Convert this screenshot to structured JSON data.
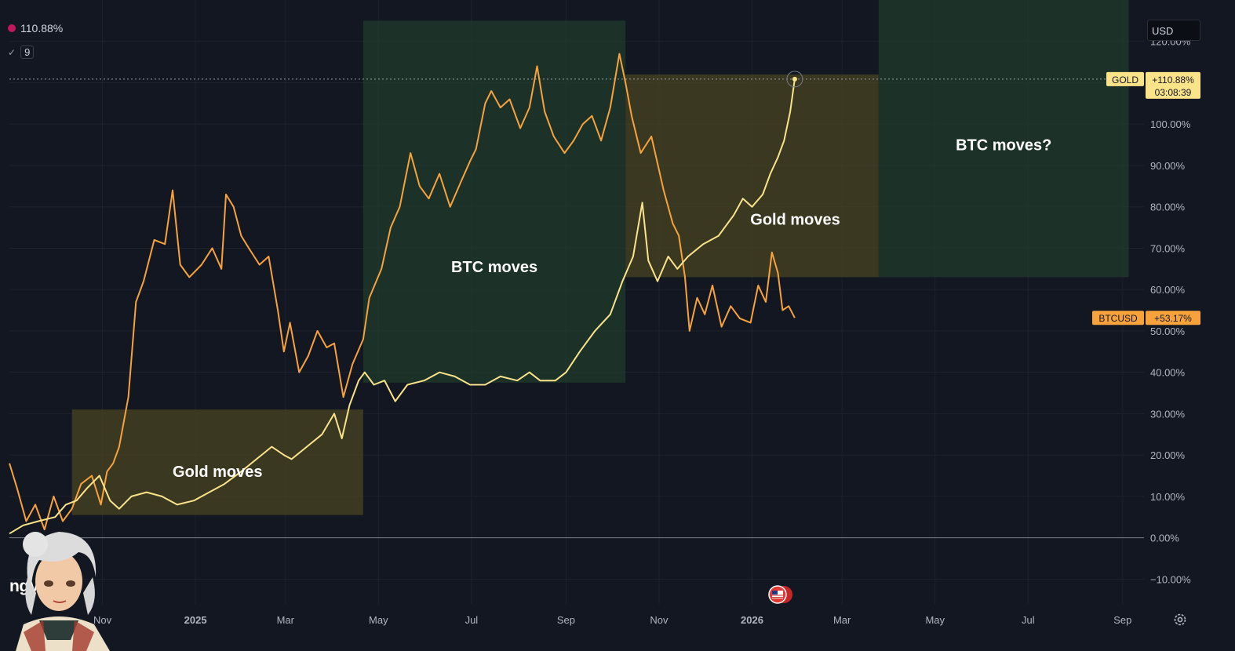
{
  "legend": {
    "value": "110.88%",
    "count": "9"
  },
  "currency": "USD",
  "brand": "TradingView",
  "brand_visible": "ngView",
  "colors": {
    "gold": "#fbe38a",
    "btc": "#f7a23b",
    "bg": "#131722",
    "green_box": "#1f3a2c",
    "yellow_box": "#4a4423"
  },
  "tags": {
    "gold": {
      "symbol": "GOLD",
      "value": "+110.88%",
      "countdown": "03:08:39"
    },
    "btc": {
      "symbol": "BTCUSD",
      "value": "+53.17%"
    }
  },
  "chart_data": {
    "type": "line",
    "x_labels": [
      "Nov",
      "2025",
      "Mar",
      "May",
      "Jul",
      "Sep",
      "Nov",
      "2026",
      "Mar",
      "May",
      "Jul",
      "Sep"
    ],
    "y_ticks": [
      "120.00%",
      "110.00%",
      "100.00%",
      "90.00%",
      "80.00%",
      "70.00%",
      "60.00%",
      "50.00%",
      "40.00%",
      "30.00%",
      "20.00%",
      "10.00%",
      "0.00%",
      "−10.00%"
    ],
    "y_tick_values": [
      120,
      110,
      100,
      90,
      80,
      70,
      60,
      50,
      40,
      30,
      20,
      10,
      0,
      -10
    ],
    "ylim": [
      -16,
      130
    ],
    "xlim": [
      "2024-09-01",
      "2026-09-15"
    ],
    "series": [
      {
        "name": "GOLD",
        "color": "#fbe38a",
        "points": [
          [
            "2024-09-01",
            1
          ],
          [
            "2024-09-10",
            3
          ],
          [
            "2024-09-20",
            4
          ],
          [
            "2024-10-01",
            5
          ],
          [
            "2024-10-08",
            8
          ],
          [
            "2024-10-15",
            9
          ],
          [
            "2024-10-22",
            12
          ],
          [
            "2024-10-30",
            15
          ],
          [
            "2024-11-06",
            9
          ],
          [
            "2024-11-12",
            7
          ],
          [
            "2024-11-20",
            10
          ],
          [
            "2024-11-30",
            11
          ],
          [
            "2024-12-10",
            10
          ],
          [
            "2024-12-20",
            8
          ],
          [
            "2024-12-31",
            9
          ],
          [
            "2025-01-10",
            11
          ],
          [
            "2025-01-20",
            13
          ],
          [
            "2025-01-31",
            16
          ],
          [
            "2025-02-10",
            19
          ],
          [
            "2025-02-20",
            22
          ],
          [
            "2025-02-28",
            20
          ],
          [
            "2025-03-05",
            19
          ],
          [
            "2025-03-15",
            22
          ],
          [
            "2025-03-25",
            25
          ],
          [
            "2025-04-02",
            30
          ],
          [
            "2025-04-07",
            24
          ],
          [
            "2025-04-12",
            32
          ],
          [
            "2025-04-18",
            38
          ],
          [
            "2025-04-22",
            40
          ],
          [
            "2025-04-28",
            37
          ],
          [
            "2025-05-05",
            38
          ],
          [
            "2025-05-12",
            33
          ],
          [
            "2025-05-20",
            37
          ],
          [
            "2025-05-31",
            38
          ],
          [
            "2025-06-10",
            40
          ],
          [
            "2025-06-20",
            39
          ],
          [
            "2025-06-30",
            37
          ],
          [
            "2025-07-10",
            37
          ],
          [
            "2025-07-20",
            39
          ],
          [
            "2025-07-31",
            38
          ],
          [
            "2025-08-08",
            40
          ],
          [
            "2025-08-15",
            38
          ],
          [
            "2025-08-25",
            38
          ],
          [
            "2025-09-01",
            40
          ],
          [
            "2025-09-10",
            45
          ],
          [
            "2025-09-20",
            50
          ],
          [
            "2025-09-30",
            54
          ],
          [
            "2025-10-08",
            62
          ],
          [
            "2025-10-15",
            68
          ],
          [
            "2025-10-21",
            81
          ],
          [
            "2025-10-25",
            67
          ],
          [
            "2025-10-31",
            62
          ],
          [
            "2025-11-07",
            68
          ],
          [
            "2025-11-13",
            65
          ],
          [
            "2025-11-20",
            68
          ],
          [
            "2025-11-30",
            71
          ],
          [
            "2025-12-10",
            73
          ],
          [
            "2025-12-20",
            78
          ],
          [
            "2025-12-26",
            82
          ],
          [
            "2026-01-01",
            80
          ],
          [
            "2026-01-08",
            83
          ],
          [
            "2026-01-13",
            88
          ],
          [
            "2026-01-18",
            92
          ],
          [
            "2026-01-22",
            96
          ],
          [
            "2026-01-26",
            103
          ],
          [
            "2026-01-29",
            110.88
          ]
        ]
      },
      {
        "name": "BTCUSD",
        "color": "#f7a23b",
        "points": [
          [
            "2024-09-01",
            18
          ],
          [
            "2024-09-06",
            12
          ],
          [
            "2024-09-12",
            4
          ],
          [
            "2024-09-18",
            8
          ],
          [
            "2024-09-24",
            2
          ],
          [
            "2024-09-30",
            10
          ],
          [
            "2024-10-06",
            4
          ],
          [
            "2024-10-12",
            7
          ],
          [
            "2024-10-18",
            13
          ],
          [
            "2024-10-25",
            15
          ],
          [
            "2024-10-31",
            8
          ],
          [
            "2024-11-04",
            16
          ],
          [
            "2024-11-08",
            18
          ],
          [
            "2024-11-12",
            22
          ],
          [
            "2024-11-18",
            34
          ],
          [
            "2024-11-23",
            57
          ],
          [
            "2024-11-28",
            62
          ],
          [
            "2024-12-05",
            72
          ],
          [
            "2024-12-12",
            71
          ],
          [
            "2024-12-17",
            84
          ],
          [
            "2024-12-22",
            66
          ],
          [
            "2024-12-28",
            63
          ],
          [
            "2025-01-05",
            66
          ],
          [
            "2025-01-12",
            70
          ],
          [
            "2025-01-18",
            65
          ],
          [
            "2025-01-21",
            83
          ],
          [
            "2025-01-26",
            80
          ],
          [
            "2025-01-31",
            73
          ],
          [
            "2025-02-05",
            70
          ],
          [
            "2025-02-12",
            66
          ],
          [
            "2025-02-18",
            68
          ],
          [
            "2025-02-24",
            55
          ],
          [
            "2025-02-28",
            45
          ],
          [
            "2025-03-04",
            52
          ],
          [
            "2025-03-10",
            40
          ],
          [
            "2025-03-16",
            44
          ],
          [
            "2025-03-22",
            50
          ],
          [
            "2025-03-28",
            46
          ],
          [
            "2025-04-02",
            47
          ],
          [
            "2025-04-08",
            34
          ],
          [
            "2025-04-14",
            42
          ],
          [
            "2025-04-21",
            48
          ],
          [
            "2025-04-25",
            58
          ],
          [
            "2025-05-03",
            65
          ],
          [
            "2025-05-09",
            75
          ],
          [
            "2025-05-15",
            80
          ],
          [
            "2025-05-22",
            93
          ],
          [
            "2025-05-28",
            85
          ],
          [
            "2025-06-03",
            82
          ],
          [
            "2025-06-10",
            88
          ],
          [
            "2025-06-17",
            80
          ],
          [
            "2025-06-24",
            86
          ],
          [
            "2025-06-30",
            91
          ],
          [
            "2025-07-04",
            94
          ],
          [
            "2025-07-10",
            105
          ],
          [
            "2025-07-14",
            108
          ],
          [
            "2025-07-20",
            104
          ],
          [
            "2025-07-26",
            106
          ],
          [
            "2025-08-02",
            99
          ],
          [
            "2025-08-08",
            104
          ],
          [
            "2025-08-13",
            114
          ],
          [
            "2025-08-18",
            103
          ],
          [
            "2025-08-24",
            97
          ],
          [
            "2025-08-31",
            93
          ],
          [
            "2025-09-06",
            96
          ],
          [
            "2025-09-12",
            100
          ],
          [
            "2025-09-18",
            102
          ],
          [
            "2025-09-24",
            96
          ],
          [
            "2025-09-30",
            104
          ],
          [
            "2025-10-06",
            117
          ],
          [
            "2025-10-10",
            110
          ],
          [
            "2025-10-14",
            102
          ],
          [
            "2025-10-20",
            93
          ],
          [
            "2025-10-27",
            97
          ],
          [
            "2025-11-04",
            84
          ],
          [
            "2025-11-10",
            76
          ],
          [
            "2025-11-14",
            73
          ],
          [
            "2025-11-18",
            63
          ],
          [
            "2025-11-21",
            50
          ],
          [
            "2025-11-26",
            58
          ],
          [
            "2025-12-01",
            54
          ],
          [
            "2025-12-06",
            61
          ],
          [
            "2025-12-12",
            51
          ],
          [
            "2025-12-18",
            56
          ],
          [
            "2025-12-24",
            53
          ],
          [
            "2025-12-31",
            52
          ],
          [
            "2026-01-05",
            61
          ],
          [
            "2026-01-10",
            57
          ],
          [
            "2026-01-14",
            69
          ],
          [
            "2026-01-18",
            64
          ],
          [
            "2026-01-21",
            55
          ],
          [
            "2026-01-25",
            56
          ],
          [
            "2026-01-29",
            53.17
          ]
        ]
      }
    ],
    "zones": [
      {
        "label": "Gold moves",
        "kind": "gold",
        "x0": "2024-10-12",
        "x1": "2025-04-21",
        "y0": 5.5,
        "y1": 31
      },
      {
        "label": "BTC moves",
        "kind": "btc",
        "x0": "2025-04-21",
        "x1": "2025-10-10",
        "y0": 37.5,
        "y1": 125
      },
      {
        "label": "Gold moves",
        "kind": "gold",
        "x0": "2025-10-10",
        "x1": "2026-03-25",
        "y0": 63,
        "y1": 112
      },
      {
        "label": "BTC moves?",
        "kind": "btc",
        "x0": "2026-03-25",
        "x1": "2026-09-05",
        "y0": 63,
        "y1": 130
      }
    ]
  }
}
